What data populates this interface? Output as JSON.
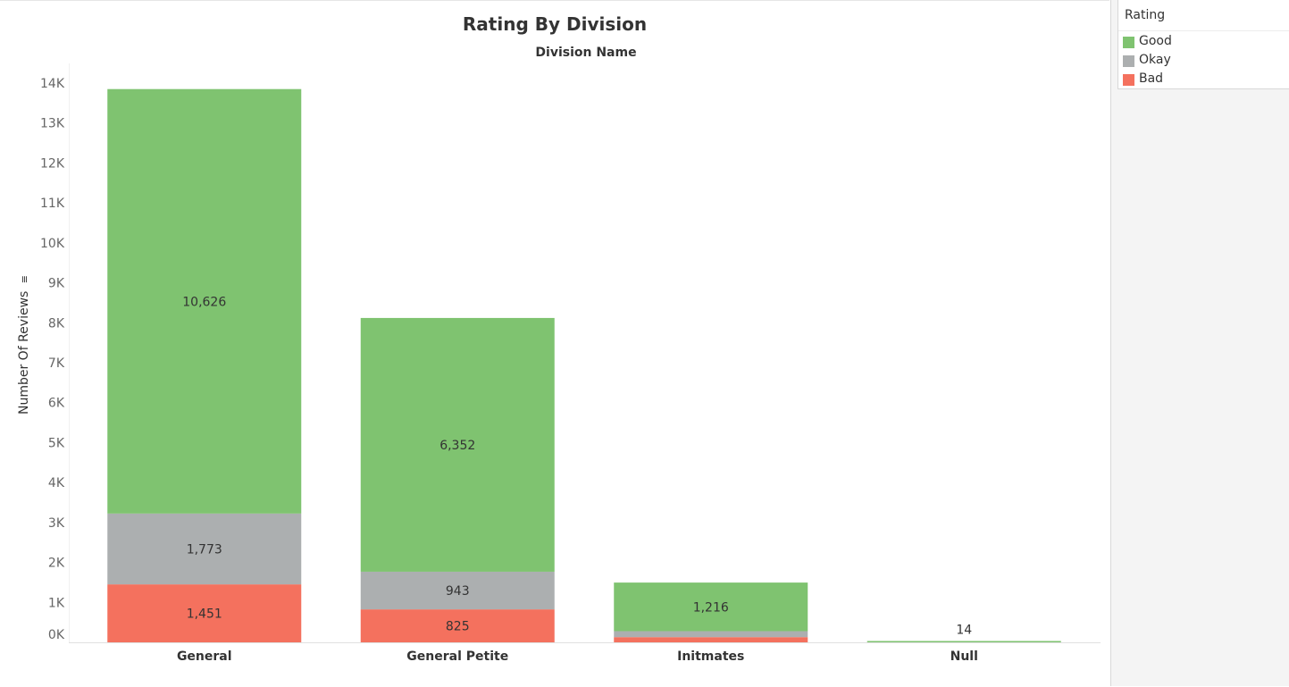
{
  "chart_data": {
    "type": "bar",
    "stacked": true,
    "title": "Rating By Division",
    "header_label": "Division Name",
    "xlabel": "",
    "ylabel": "Number Of Reviews",
    "ylim": [
      0,
      14000
    ],
    "y_ticks": [
      {
        "value": 0,
        "label": "0K"
      },
      {
        "value": 1000,
        "label": "1K"
      },
      {
        "value": 2000,
        "label": "2K"
      },
      {
        "value": 3000,
        "label": "3K"
      },
      {
        "value": 4000,
        "label": "4K"
      },
      {
        "value": 5000,
        "label": "5K"
      },
      {
        "value": 6000,
        "label": "6K"
      },
      {
        "value": 7000,
        "label": "7K"
      },
      {
        "value": 8000,
        "label": "8K"
      },
      {
        "value": 9000,
        "label": "9K"
      },
      {
        "value": 10000,
        "label": "10K"
      },
      {
        "value": 11000,
        "label": "11K"
      },
      {
        "value": 12000,
        "label": "12K"
      },
      {
        "value": 13000,
        "label": "13K"
      },
      {
        "value": 14000,
        "label": "14K"
      }
    ],
    "categories": [
      "General",
      "General Petite",
      "Initmates",
      "Null"
    ],
    "series": [
      {
        "name": "Bad",
        "color": "#f4715e",
        "values": [
          1451,
          825,
          130,
          0
        ],
        "labels": [
          "1,451",
          "825",
          "",
          ""
        ]
      },
      {
        "name": "Okay",
        "color": "#acafb0",
        "values": [
          1773,
          943,
          150,
          0
        ],
        "labels": [
          "1,773",
          "943",
          "",
          ""
        ]
      },
      {
        "name": "Good",
        "color": "#7fc370",
        "values": [
          10626,
          6352,
          1216,
          14
        ],
        "labels": [
          "10,626",
          "6,352",
          "1,216",
          "14"
        ]
      }
    ],
    "grid": false,
    "legend": {
      "title": "Rating",
      "placement": "right",
      "order": [
        "Good",
        "Okay",
        "Bad"
      ]
    }
  }
}
